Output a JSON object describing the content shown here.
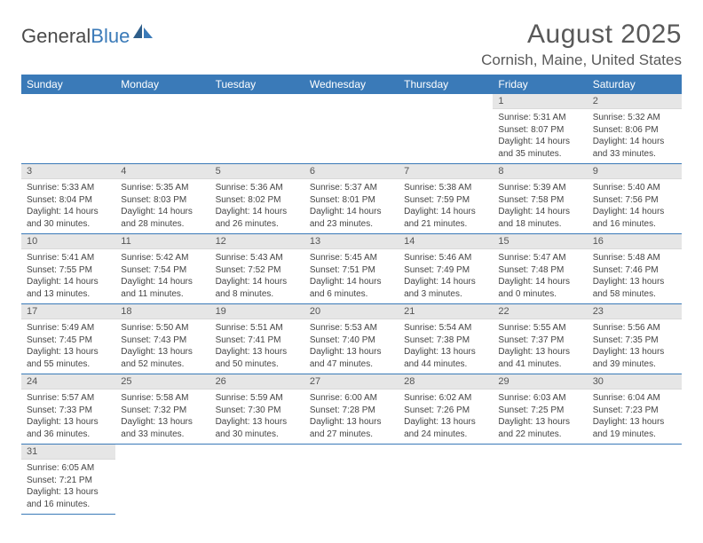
{
  "logo": {
    "text1": "General",
    "text2": "Blue"
  },
  "title": "August 2025",
  "location": "Cornish, Maine, United States",
  "colors": {
    "header_bg": "#3a7ab8",
    "daynum_bg": "#e6e6e6",
    "row_border": "#3a7ab8",
    "text": "#444444"
  },
  "weekdays": [
    "Sunday",
    "Monday",
    "Tuesday",
    "Wednesday",
    "Thursday",
    "Friday",
    "Saturday"
  ],
  "weeks": [
    [
      null,
      null,
      null,
      null,
      null,
      {
        "n": "1",
        "sr": "5:31 AM",
        "ss": "8:07 PM",
        "dl": "14 hours and 35 minutes."
      },
      {
        "n": "2",
        "sr": "5:32 AM",
        "ss": "8:06 PM",
        "dl": "14 hours and 33 minutes."
      }
    ],
    [
      {
        "n": "3",
        "sr": "5:33 AM",
        "ss": "8:04 PM",
        "dl": "14 hours and 30 minutes."
      },
      {
        "n": "4",
        "sr": "5:35 AM",
        "ss": "8:03 PM",
        "dl": "14 hours and 28 minutes."
      },
      {
        "n": "5",
        "sr": "5:36 AM",
        "ss": "8:02 PM",
        "dl": "14 hours and 26 minutes."
      },
      {
        "n": "6",
        "sr": "5:37 AM",
        "ss": "8:01 PM",
        "dl": "14 hours and 23 minutes."
      },
      {
        "n": "7",
        "sr": "5:38 AM",
        "ss": "7:59 PM",
        "dl": "14 hours and 21 minutes."
      },
      {
        "n": "8",
        "sr": "5:39 AM",
        "ss": "7:58 PM",
        "dl": "14 hours and 18 minutes."
      },
      {
        "n": "9",
        "sr": "5:40 AM",
        "ss": "7:56 PM",
        "dl": "14 hours and 16 minutes."
      }
    ],
    [
      {
        "n": "10",
        "sr": "5:41 AM",
        "ss": "7:55 PM",
        "dl": "14 hours and 13 minutes."
      },
      {
        "n": "11",
        "sr": "5:42 AM",
        "ss": "7:54 PM",
        "dl": "14 hours and 11 minutes."
      },
      {
        "n": "12",
        "sr": "5:43 AM",
        "ss": "7:52 PM",
        "dl": "14 hours and 8 minutes."
      },
      {
        "n": "13",
        "sr": "5:45 AM",
        "ss": "7:51 PM",
        "dl": "14 hours and 6 minutes."
      },
      {
        "n": "14",
        "sr": "5:46 AM",
        "ss": "7:49 PM",
        "dl": "14 hours and 3 minutes."
      },
      {
        "n": "15",
        "sr": "5:47 AM",
        "ss": "7:48 PM",
        "dl": "14 hours and 0 minutes."
      },
      {
        "n": "16",
        "sr": "5:48 AM",
        "ss": "7:46 PM",
        "dl": "13 hours and 58 minutes."
      }
    ],
    [
      {
        "n": "17",
        "sr": "5:49 AM",
        "ss": "7:45 PM",
        "dl": "13 hours and 55 minutes."
      },
      {
        "n": "18",
        "sr": "5:50 AM",
        "ss": "7:43 PM",
        "dl": "13 hours and 52 minutes."
      },
      {
        "n": "19",
        "sr": "5:51 AM",
        "ss": "7:41 PM",
        "dl": "13 hours and 50 minutes."
      },
      {
        "n": "20",
        "sr": "5:53 AM",
        "ss": "7:40 PM",
        "dl": "13 hours and 47 minutes."
      },
      {
        "n": "21",
        "sr": "5:54 AM",
        "ss": "7:38 PM",
        "dl": "13 hours and 44 minutes."
      },
      {
        "n": "22",
        "sr": "5:55 AM",
        "ss": "7:37 PM",
        "dl": "13 hours and 41 minutes."
      },
      {
        "n": "23",
        "sr": "5:56 AM",
        "ss": "7:35 PM",
        "dl": "13 hours and 39 minutes."
      }
    ],
    [
      {
        "n": "24",
        "sr": "5:57 AM",
        "ss": "7:33 PM",
        "dl": "13 hours and 36 minutes."
      },
      {
        "n": "25",
        "sr": "5:58 AM",
        "ss": "7:32 PM",
        "dl": "13 hours and 33 minutes."
      },
      {
        "n": "26",
        "sr": "5:59 AM",
        "ss": "7:30 PM",
        "dl": "13 hours and 30 minutes."
      },
      {
        "n": "27",
        "sr": "6:00 AM",
        "ss": "7:28 PM",
        "dl": "13 hours and 27 minutes."
      },
      {
        "n": "28",
        "sr": "6:02 AM",
        "ss": "7:26 PM",
        "dl": "13 hours and 24 minutes."
      },
      {
        "n": "29",
        "sr": "6:03 AM",
        "ss": "7:25 PM",
        "dl": "13 hours and 22 minutes."
      },
      {
        "n": "30",
        "sr": "6:04 AM",
        "ss": "7:23 PM",
        "dl": "13 hours and 19 minutes."
      }
    ],
    [
      {
        "n": "31",
        "sr": "6:05 AM",
        "ss": "7:21 PM",
        "dl": "13 hours and 16 minutes."
      },
      null,
      null,
      null,
      null,
      null,
      null
    ]
  ],
  "labels": {
    "sunrise": "Sunrise:",
    "sunset": "Sunset:",
    "daylight": "Daylight:"
  }
}
